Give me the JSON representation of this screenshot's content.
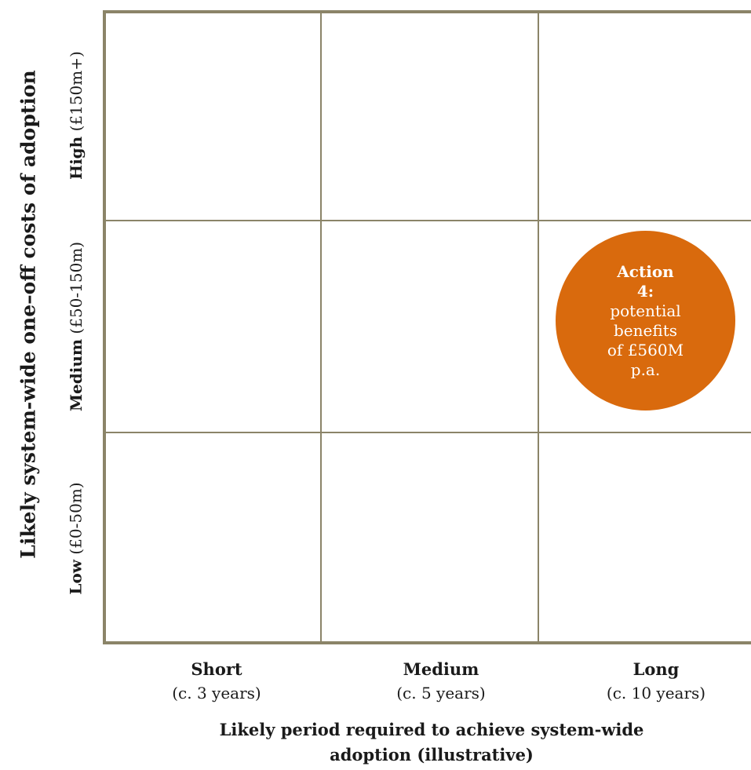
{
  "axis": {
    "y_title": "Likely system-wide one–off costs of adoption",
    "x_title_line1": "Likely period required to achieve system-wide",
    "x_title_line2": "adoption (illustrative)"
  },
  "rows": [
    {
      "name": "High",
      "range": "(£150m+)"
    },
    {
      "name": "Medium",
      "range": "(£50-150m)"
    },
    {
      "name": "Low",
      "range": "(£0-50m)"
    }
  ],
  "columns": [
    {
      "name": "Short",
      "range": "(c. 3 years)"
    },
    {
      "name": "Medium",
      "range": "(c. 5 years)"
    },
    {
      "name": "Long",
      "range": "(c. 10 years)"
    }
  ],
  "bubble": {
    "title_line1": "Action",
    "title_line2": "4:",
    "body_line1": "potential",
    "body_line2": "benefits",
    "body_line3": "of £560M",
    "body_line4": "p.a.",
    "color": "#d96a0d",
    "row": "Medium",
    "column": "Long"
  },
  "colors": {
    "grid": "#8b8468",
    "text": "#1a1a1a"
  }
}
